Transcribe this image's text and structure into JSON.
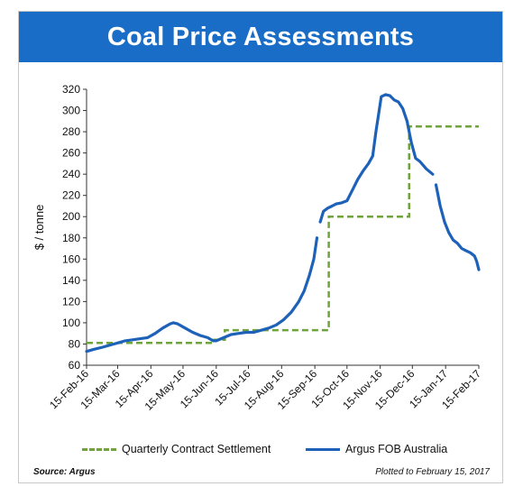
{
  "title": "Coal Price Assessments",
  "source": "Source: Argus",
  "plotted": "Plotted to February 15, 2017",
  "colors": {
    "banner": "#1a6dc6",
    "quarterly": "#6fa33b",
    "argus": "#1d62b8"
  },
  "chart_data": {
    "type": "line",
    "ylabel": "$ / tonne",
    "ylim": [
      60,
      320
    ],
    "yticks": [
      60,
      80,
      100,
      120,
      140,
      160,
      180,
      200,
      220,
      240,
      260,
      280,
      300,
      320
    ],
    "xlim": [
      "2016-02-15",
      "2017-02-15"
    ],
    "xticks": [
      "15-Feb-16",
      "15-Mar-16",
      "15-Apr-16",
      "15-May-16",
      "15-Jun-16",
      "15-Jul-16",
      "15-Aug-16",
      "15-Sep-16",
      "15-Oct-16",
      "15-Nov-16",
      "15-Dec-16",
      "15-Jan-17",
      "15-Feb-17"
    ],
    "grid": false,
    "legend": "bottom",
    "series": [
      {
        "name": "Quarterly Contract Settlement",
        "style": "dashed",
        "step": true,
        "points": [
          [
            "2016-02-15",
            81
          ],
          [
            "2016-06-13",
            84
          ],
          [
            "2016-06-23",
            93
          ],
          [
            "2016-09-28",
            200
          ],
          [
            "2016-12-12",
            285
          ],
          [
            "2017-02-15",
            285
          ]
        ]
      },
      {
        "name": "Argus FOB Australia",
        "style": "solid",
        "segments": [
          [
            [
              "2016-02-15",
              73
            ],
            [
              "2016-02-22",
              75
            ],
            [
              "2016-03-01",
              77
            ],
            [
              "2016-03-08",
              79
            ],
            [
              "2016-03-15",
              81
            ],
            [
              "2016-03-22",
              83
            ],
            [
              "2016-03-29",
              84
            ],
            [
              "2016-04-05",
              85
            ],
            [
              "2016-04-12",
              86
            ],
            [
              "2016-04-19",
              90
            ],
            [
              "2016-04-26",
              95
            ],
            [
              "2016-05-03",
              99
            ],
            [
              "2016-05-06",
              100
            ],
            [
              "2016-05-10",
              99
            ],
            [
              "2016-05-17",
              95
            ],
            [
              "2016-05-24",
              91
            ],
            [
              "2016-05-31",
              88
            ],
            [
              "2016-06-07",
              86
            ],
            [
              "2016-06-12",
              83
            ],
            [
              "2016-06-15",
              83
            ],
            [
              "2016-06-22",
              86
            ],
            [
              "2016-06-29",
              89
            ],
            [
              "2016-07-06",
              90
            ],
            [
              "2016-07-13",
              91
            ],
            [
              "2016-07-20",
              91
            ],
            [
              "2016-07-27",
              93
            ],
            [
              "2016-08-03",
              95
            ],
            [
              "2016-08-10",
              98
            ],
            [
              "2016-08-17",
              103
            ],
            [
              "2016-08-24",
              110
            ],
            [
              "2016-08-31",
              120
            ],
            [
              "2016-09-05",
              130
            ],
            [
              "2016-09-10",
              145
            ],
            [
              "2016-09-14",
              160
            ],
            [
              "2016-09-17",
              180
            ]
          ],
          [
            [
              "2016-09-20",
              195
            ],
            [
              "2016-09-23",
              205
            ],
            [
              "2016-09-27",
              208
            ],
            [
              "2016-10-01",
              210
            ],
            [
              "2016-10-05",
              212
            ],
            [
              "2016-10-10",
              213
            ],
            [
              "2016-10-15",
              215
            ],
            [
              "2016-10-20",
              225
            ],
            [
              "2016-10-25",
              235
            ],
            [
              "2016-10-30",
              243
            ],
            [
              "2016-11-04",
              250
            ],
            [
              "2016-11-08",
              257
            ],
            [
              "2016-11-11",
              280
            ],
            [
              "2016-11-14",
              300
            ],
            [
              "2016-11-16",
              313
            ],
            [
              "2016-11-20",
              315
            ],
            [
              "2016-11-24",
              314
            ],
            [
              "2016-11-28",
              310
            ],
            [
              "2016-12-02",
              308
            ],
            [
              "2016-12-06",
              302
            ],
            [
              "2016-12-10",
              290
            ],
            [
              "2016-12-14",
              270
            ],
            [
              "2016-12-18",
              255
            ],
            [
              "2016-12-22",
              252
            ],
            [
              "2016-12-28",
              245
            ],
            [
              "2017-01-03",
              240
            ]
          ],
          [
            [
              "2017-01-06",
              230
            ],
            [
              "2017-01-10",
              210
            ],
            [
              "2017-01-14",
              195
            ],
            [
              "2017-01-18",
              185
            ],
            [
              "2017-01-22",
              178
            ],
            [
              "2017-01-26",
              175
            ],
            [
              "2017-01-30",
              170
            ],
            [
              "2017-02-03",
              168
            ],
            [
              "2017-02-07",
              166
            ],
            [
              "2017-02-11",
              163
            ],
            [
              "2017-02-13",
              158
            ],
            [
              "2017-02-15",
              150
            ]
          ]
        ]
      }
    ]
  }
}
